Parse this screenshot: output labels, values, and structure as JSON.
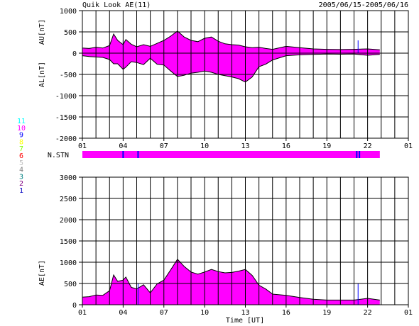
{
  "header": {
    "title": "Quik Look AE(11)",
    "date_range": "2005/06/15-2005/06/16"
  },
  "colors": {
    "fill": "#ff00ff",
    "marker": "#0000ff",
    "outline": "#000000",
    "station_count_colors": {
      "11": "#00ffff",
      "10": "#ff00ff",
      "9": "#0000ff",
      "8": "#ffff00",
      "7": "#80ff00",
      "6": "#ff0000",
      "5": "#bfbfbf",
      "4": "#808080",
      "3": "#008080",
      "2": "#800080",
      "1": "#0000c0"
    }
  },
  "station_legend": [
    "11",
    "10",
    "9",
    "8",
    "7",
    "6",
    "5",
    "4",
    "3",
    "2",
    "1"
  ],
  "chart_data": [
    {
      "type": "area",
      "panel": "AU/AL",
      "x_unit": "hour UT",
      "x_ticks": [
        "01",
        "04",
        "07",
        "10",
        "13",
        "16",
        "19",
        "22",
        "01"
      ],
      "xlim": [
        1,
        25
      ],
      "ylim": [
        -2000,
        1000
      ],
      "y_ticks": [
        "1000",
        "500",
        "0",
        "-500",
        "-1000",
        "-1500",
        "-2000"
      ],
      "ylabel_upper": "AU[nT]",
      "ylabel_lower": "AL[nT]",
      "grid": true,
      "series": [
        {
          "name": "AU",
          "x": [
            1.0,
            1.5,
            2.0,
            2.5,
            3.0,
            3.3,
            3.6,
            4.0,
            4.2,
            4.6,
            5.0,
            5.5,
            6.0,
            6.5,
            7.0,
            7.5,
            8.0,
            8.5,
            9.0,
            9.5,
            10.0,
            10.5,
            11.0,
            11.5,
            12.0,
            12.5,
            13.0,
            13.5,
            14.0,
            14.5,
            15.0,
            16.0,
            17.0,
            18.0,
            19.0,
            20.0,
            21.0,
            22.0,
            22.9
          ],
          "values": [
            120,
            110,
            140,
            120,
            180,
            450,
            300,
            200,
            320,
            210,
            150,
            200,
            160,
            230,
            300,
            400,
            520,
            380,
            300,
            270,
            350,
            380,
            280,
            220,
            200,
            190,
            150,
            130,
            140,
            110,
            90,
            160,
            130,
            100,
            90,
            85,
            90,
            100,
            80
          ]
        },
        {
          "name": "AL",
          "x": [
            1.0,
            1.5,
            2.0,
            2.5,
            3.0,
            3.3,
            3.6,
            4.0,
            4.2,
            4.6,
            5.0,
            5.5,
            6.0,
            6.5,
            7.0,
            7.5,
            8.0,
            8.5,
            9.0,
            9.5,
            10.0,
            10.5,
            11.0,
            11.5,
            12.0,
            12.5,
            13.0,
            13.5,
            14.0,
            14.5,
            15.0,
            16.0,
            17.0,
            18.0,
            19.0,
            20.0,
            21.0,
            22.0,
            22.9
          ],
          "values": [
            -60,
            -80,
            -90,
            -100,
            -150,
            -250,
            -250,
            -380,
            -330,
            -200,
            -220,
            -270,
            -120,
            -260,
            -280,
            -420,
            -550,
            -520,
            -470,
            -450,
            -420,
            -450,
            -500,
            -530,
            -560,
            -600,
            -680,
            -560,
            -320,
            -260,
            -160,
            -60,
            -40,
            -30,
            -20,
            -25,
            -20,
            -50,
            -30
          ]
        }
      ],
      "markers_x": [
        4.0,
        21.3
      ]
    },
    {
      "type": "bar",
      "panel": "N.STN",
      "label": "N.STN",
      "xlim": [
        1,
        25
      ],
      "covered_range": [
        1.0,
        22.9
      ],
      "station_count": "10",
      "markers_x": [
        4.0,
        5.1,
        21.2,
        21.4
      ]
    },
    {
      "type": "area",
      "panel": "AE",
      "x_ticks": [
        "01",
        "04",
        "07",
        "10",
        "13",
        "16",
        "19",
        "22",
        "01"
      ],
      "xlim": [
        1,
        25
      ],
      "ylim": [
        0,
        3000
      ],
      "y_ticks": [
        "3000",
        "2500",
        "2000",
        "1500",
        "1000",
        "500",
        "0"
      ],
      "ylabel": "AE[nT]",
      "xlabel": "Time [UT]",
      "grid": true,
      "series": [
        {
          "name": "AE",
          "x": [
            1.0,
            1.5,
            2.0,
            2.5,
            3.0,
            3.3,
            3.6,
            4.0,
            4.2,
            4.6,
            5.0,
            5.5,
            6.0,
            6.5,
            7.0,
            7.5,
            8.0,
            8.5,
            9.0,
            9.5,
            10.0,
            10.5,
            11.0,
            11.5,
            12.0,
            12.5,
            13.0,
            13.5,
            14.0,
            14.5,
            15.0,
            16.0,
            17.0,
            18.0,
            19.0,
            20.0,
            21.0,
            22.0,
            22.9
          ],
          "values": [
            180,
            190,
            230,
            220,
            330,
            700,
            550,
            580,
            650,
            410,
            370,
            470,
            280,
            490,
            580,
            820,
            1070,
            900,
            770,
            720,
            770,
            830,
            780,
            750,
            760,
            790,
            830,
            690,
            460,
            370,
            250,
            220,
            170,
            130,
            110,
            110,
            110,
            150,
            110
          ]
        }
      ],
      "markers_x": [
        4.0,
        5.1,
        21.3
      ]
    }
  ]
}
